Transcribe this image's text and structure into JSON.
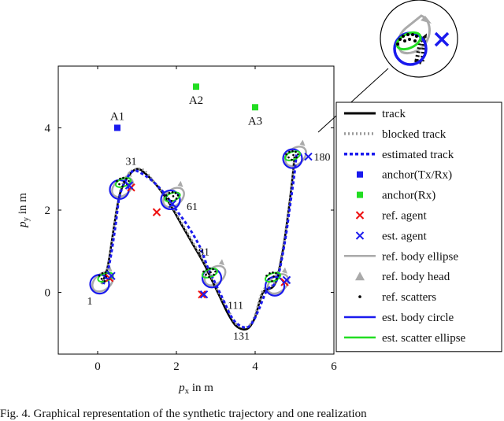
{
  "chart_data": {
    "type": "line",
    "xlabel": "p_x in m",
    "ylabel": "p_y in m",
    "xlim": [
      -1,
      6
    ],
    "ylim": [
      -1.5,
      5.5
    ],
    "xticks": [
      "0",
      "2",
      "4",
      "6"
    ],
    "yticks": [
      "0",
      "2",
      "4"
    ],
    "grid": false,
    "legend_placement": "right",
    "legend": [
      {
        "label": "track",
        "color": "#000000"
      },
      {
        "label": "blocked track",
        "color": "#999999"
      },
      {
        "label": "estimated track",
        "color": "#1a1aee"
      },
      {
        "label": "anchor(Tx/Rx)",
        "color": "#1a1aee"
      },
      {
        "label": "anchor(Rx)",
        "color": "#22dd22"
      },
      {
        "label": "ref. agent",
        "color": "#ee1111"
      },
      {
        "label": "est. agent",
        "color": "#1a1aee"
      },
      {
        "label": "ref. body ellipse",
        "color": "#aaaaaa"
      },
      {
        "label": "ref. body head",
        "color": "#aaaaaa"
      },
      {
        "label": "ref. scatters",
        "color": "#000000"
      },
      {
        "label": "est. body circle",
        "color": "#1a1aee"
      },
      {
        "label": "est. scatter ellipse",
        "color": "#22dd22"
      }
    ],
    "anchors": [
      {
        "label": "A1",
        "x": 0.5,
        "y": 4.0,
        "type": "Tx/Rx"
      },
      {
        "label": "A2",
        "x": 2.5,
        "y": 5.0,
        "type": "Rx"
      },
      {
        "label": "A3",
        "x": 4.0,
        "y": 4.5,
        "type": "Rx"
      }
    ],
    "time_labels": [
      {
        "label": "1",
        "x": -0.2,
        "y": -0.2
      },
      {
        "label": "31",
        "x": 0.85,
        "y": 3.2
      },
      {
        "label": "61",
        "x": 2.4,
        "y": 2.1
      },
      {
        "label": "81",
        "x": 2.7,
        "y": 1.0
      },
      {
        "label": "111",
        "x": 3.5,
        "y": -0.3
      },
      {
        "label": "131",
        "x": 3.65,
        "y": -1.05
      },
      {
        "label": "180",
        "x": 5.7,
        "y": 3.3
      }
    ],
    "series": [
      {
        "name": "track",
        "x": [
          0.1,
          0.25,
          0.4,
          0.5,
          0.6,
          0.8,
          1.0,
          1.2,
          1.5,
          1.8,
          2.1,
          2.4,
          2.7,
          2.9,
          3.1,
          3.3,
          3.5,
          3.7,
          3.85,
          4.0,
          4.2,
          4.5,
          4.7,
          4.85,
          4.95,
          5.0
        ],
        "y": [
          0.2,
          0.6,
          1.5,
          2.1,
          2.5,
          2.85,
          3.0,
          2.9,
          2.6,
          2.2,
          1.7,
          1.2,
          0.7,
          0.3,
          -0.1,
          -0.5,
          -0.8,
          -0.9,
          -0.85,
          -0.6,
          0.0,
          0.2,
          1.0,
          2.0,
          2.8,
          3.3
        ]
      },
      {
        "name": "blocked track",
        "x": [
          0.1,
          0.25,
          0.4,
          0.5,
          0.6,
          0.8,
          1.0,
          1.2,
          1.5,
          1.8,
          2.1,
          2.4,
          2.7,
          2.9,
          3.1,
          3.3,
          3.5,
          3.7,
          3.85,
          4.0,
          4.2,
          4.5,
          4.7,
          4.85,
          4.95,
          5.0
        ],
        "y": [
          0.2,
          0.6,
          1.5,
          2.1,
          2.55,
          2.9,
          3.0,
          2.95,
          2.6,
          2.25,
          1.75,
          1.25,
          0.75,
          0.35,
          -0.05,
          -0.4,
          -0.75,
          -0.85,
          -0.8,
          -0.55,
          0.05,
          0.25,
          1.05,
          2.0,
          2.8,
          3.3
        ]
      },
      {
        "name": "estimated track",
        "x": [
          0.15,
          0.3,
          0.45,
          0.55,
          0.7,
          0.9,
          1.1,
          1.4,
          1.7,
          2.0,
          2.3,
          2.6,
          2.8,
          3.0,
          3.2,
          3.4,
          3.6,
          3.8,
          3.95,
          4.1,
          4.3,
          4.55,
          4.75,
          4.9,
          5.0,
          5.05
        ],
        "y": [
          0.2,
          0.7,
          1.6,
          2.3,
          2.7,
          2.95,
          2.9,
          2.7,
          2.4,
          2.0,
          1.6,
          1.1,
          0.6,
          0.2,
          -0.2,
          -0.6,
          -0.8,
          -0.85,
          -0.7,
          -0.4,
          0.05,
          0.3,
          1.2,
          2.2,
          2.9,
          3.35
        ]
      }
    ],
    "ref_agents": [
      {
        "x": 0.3,
        "y": 0.35
      },
      {
        "x": 0.85,
        "y": 2.55
      },
      {
        "x": 1.5,
        "y": 1.95
      },
      {
        "x": 2.65,
        "y": -0.05
      },
      {
        "x": 4.75,
        "y": 0.25
      }
    ],
    "est_agents": [
      {
        "x": 0.35,
        "y": 0.4
      },
      {
        "x": 0.8,
        "y": 2.6
      },
      {
        "x": 1.9,
        "y": 2.15
      },
      {
        "x": 2.7,
        "y": -0.05
      },
      {
        "x": 4.8,
        "y": 0.3
      },
      {
        "x": 5.35,
        "y": 3.3
      }
    ],
    "est_body_circles": [
      {
        "x": 0.05,
        "y": 0.2
      },
      {
        "x": 0.55,
        "y": 2.5
      },
      {
        "x": 1.85,
        "y": 2.25
      },
      {
        "x": 2.9,
        "y": 0.35
      },
      {
        "x": 4.5,
        "y": 0.15
      },
      {
        "x": 4.95,
        "y": 3.25
      }
    ],
    "scatter_groups": [
      {
        "x": 0.2,
        "y": 0.35
      },
      {
        "x": 0.65,
        "y": 2.65
      },
      {
        "x": 1.9,
        "y": 2.3
      },
      {
        "x": 2.85,
        "y": 0.45
      },
      {
        "x": 4.45,
        "y": 0.35
      },
      {
        "x": 4.95,
        "y": 3.3
      }
    ]
  },
  "caption": "Fig. 4.  Graphical representation of the synthetic trajectory and one realization"
}
